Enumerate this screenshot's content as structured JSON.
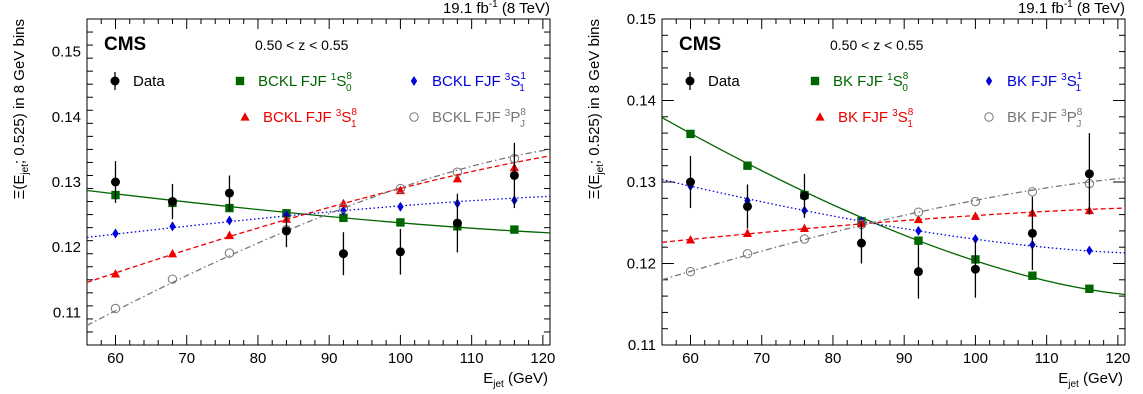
{
  "chart_data": [
    {
      "type": "scatter",
      "lumi": "19.1 fb",
      "lumi_exp": "-1",
      "energy": " (8 TeV)",
      "experiment": "CMS",
      "z_range": "0.50 < z < 0.55",
      "xlabel": "E",
      "xlabel_sub": "jet",
      "xlabel_unit": " (GeV)",
      "ylabel": "Ξ(E",
      "ylabel_sub": "jet",
      "ylabel_rest": ";  0.525) in 8 GeV bins",
      "xlim": [
        56,
        121
      ],
      "ylim": [
        0.105,
        0.155
      ],
      "xticks": [
        60,
        70,
        80,
        90,
        100,
        110,
        120
      ],
      "yticks": [
        0.11,
        0.12,
        0.13,
        0.14,
        0.15
      ],
      "yticklabels": [
        "0.11",
        "0.12",
        "0.13",
        "0.14",
        "0.15"
      ],
      "legend": [
        {
          "label": "Data",
          "sup": "",
          "sub": "",
          "marker": "data",
          "color": "#000000"
        },
        {
          "label": "BCKL FJF ",
          "sup": "1",
          "stem": "S",
          "sup2": "8",
          "sub": "0",
          "marker": "square",
          "color": "#006600"
        },
        {
          "label": "BCKL FJF ",
          "sup": "3",
          "stem": "S",
          "sup2": "1",
          "sub": "1",
          "marker": "diamond",
          "color": "#0000dd"
        },
        {
          "label": "BCKL FJF ",
          "sup": "3",
          "stem": "S",
          "sup2": "8",
          "sub": "1",
          "marker": "triangle",
          "color": "#ee0000"
        },
        {
          "label": "BCKL FJF ",
          "sup": "3",
          "stem": "P",
          "sup2": "8",
          "sub": "J",
          "marker": "circle",
          "color": "#777777"
        }
      ],
      "data": {
        "x": [
          60,
          68,
          76,
          84,
          92,
          100,
          108,
          116
        ],
        "y": [
          0.13,
          0.127,
          0.1283,
          0.1225,
          0.119,
          0.1193,
          0.1237,
          0.131
        ],
        "err": [
          0.0032,
          0.0027,
          0.0027,
          0.0025,
          0.0033,
          0.0035,
          0.0045,
          0.005
        ]
      },
      "series": [
        {
          "name": "BCKL FJF 1S0(8)",
          "marker": "square",
          "color": "#006600",
          "line": "solid",
          "values": [
            0.128,
            0.1268,
            0.126,
            0.1252,
            0.1245,
            0.1238,
            0.1232,
            0.1227
          ],
          "curve": [
            0.1287,
            0.1222
          ]
        },
        {
          "name": "BCKL FJF 3S1(1)",
          "marker": "diamond",
          "color": "#0000dd",
          "line": "dotted",
          "values": [
            0.1221,
            0.1232,
            0.1241,
            0.1249,
            0.1256,
            0.1262,
            0.1267,
            0.1272
          ],
          "curve": [
            0.1215,
            0.1278
          ]
        },
        {
          "name": "BCKL FJF 3S1(8)",
          "marker": "triangle",
          "color": "#ee0000",
          "line": "dashed",
          "values": [
            0.1159,
            0.119,
            0.1218,
            0.1243,
            0.1267,
            0.1287,
            0.1305,
            0.1322
          ],
          "curve": [
            0.1146,
            0.134
          ]
        },
        {
          "name": "BCKL FJF 3PJ(8)",
          "marker": "circle",
          "color": "#777777",
          "line": "dashdot",
          "values": [
            0.1106,
            0.1151,
            0.1191,
            0.1227,
            0.126,
            0.129,
            0.1315,
            0.1336
          ],
          "curve": [
            0.108,
            0.135
          ]
        }
      ]
    },
    {
      "type": "scatter",
      "lumi": "19.1 fb",
      "lumi_exp": "-1",
      "energy": " (8 TeV)",
      "experiment": "CMS",
      "z_range": "0.50 < z < 0.55",
      "xlabel": "E",
      "xlabel_sub": "jet",
      "xlabel_unit": " (GeV)",
      "ylabel": "Ξ(E",
      "ylabel_sub": "jet",
      "ylabel_rest": ";  0.525) in 8 GeV bins",
      "xlim": [
        56,
        121
      ],
      "ylim": [
        0.11,
        0.15
      ],
      "xticks": [
        60,
        70,
        80,
        90,
        100,
        110,
        120
      ],
      "yticks": [
        0.11,
        0.12,
        0.13,
        0.14,
        0.15
      ],
      "yticklabels": [
        "0.11",
        "0.12",
        "0.13",
        "0.14",
        "0.15"
      ],
      "legend": [
        {
          "label": "Data",
          "sup": "",
          "sub": "",
          "marker": "data",
          "color": "#000000"
        },
        {
          "label": "BK FJF ",
          "sup": "1",
          "stem": "S",
          "sup2": "8",
          "sub": "0",
          "marker": "square",
          "color": "#006600"
        },
        {
          "label": "BK FJF ",
          "sup": "3",
          "stem": "S",
          "sup2": "1",
          "sub": "1",
          "marker": "diamond",
          "color": "#0000dd"
        },
        {
          "label": "BK FJF ",
          "sup": "3",
          "stem": "S",
          "sup2": "8",
          "sub": "1",
          "marker": "triangle",
          "color": "#ee0000"
        },
        {
          "label": "BK FJF ",
          "sup": "3",
          "stem": "P",
          "sup2": "8",
          "sub": "J",
          "marker": "circle",
          "color": "#777777"
        }
      ],
      "data": {
        "x": [
          60,
          68,
          76,
          84,
          92,
          100,
          108,
          116
        ],
        "y": [
          0.13,
          0.127,
          0.1283,
          0.1225,
          0.119,
          0.1193,
          0.1237,
          0.131
        ],
        "err": [
          0.0032,
          0.0027,
          0.0027,
          0.0025,
          0.0033,
          0.0035,
          0.0045,
          0.005
        ]
      },
      "series": [
        {
          "name": "BK FJF 1S0(8)",
          "marker": "square",
          "color": "#006600",
          "line": "solid",
          "values": [
            0.1359,
            0.132,
            0.1284,
            0.1252,
            0.1228,
            0.1205,
            0.1185,
            0.1169
          ],
          "curve": [
            0.1379,
            0.1162
          ]
        },
        {
          "name": "BK FJF 3S1(1)",
          "marker": "diamond",
          "color": "#0000dd",
          "line": "dotted",
          "values": [
            0.1295,
            0.1277,
            0.1265,
            0.1252,
            0.124,
            0.123,
            0.1223,
            0.1216
          ],
          "curve": [
            0.1303,
            0.1213
          ]
        },
        {
          "name": "BK FJF 3S1(8)",
          "marker": "triangle",
          "color": "#ee0000",
          "line": "dashed",
          "values": [
            0.1229,
            0.1237,
            0.1243,
            0.1249,
            0.1254,
            0.1258,
            0.1262,
            0.1265
          ],
          "curve": [
            0.1226,
            0.1268
          ]
        },
        {
          "name": "BK FJF 3PJ(8)",
          "marker": "circle",
          "color": "#777777",
          "line": "dashdot",
          "values": [
            0.119,
            0.1212,
            0.123,
            0.1248,
            0.1263,
            0.1276,
            0.1288,
            0.1298
          ],
          "curve": [
            0.118,
            0.1305
          ]
        }
      ]
    }
  ]
}
